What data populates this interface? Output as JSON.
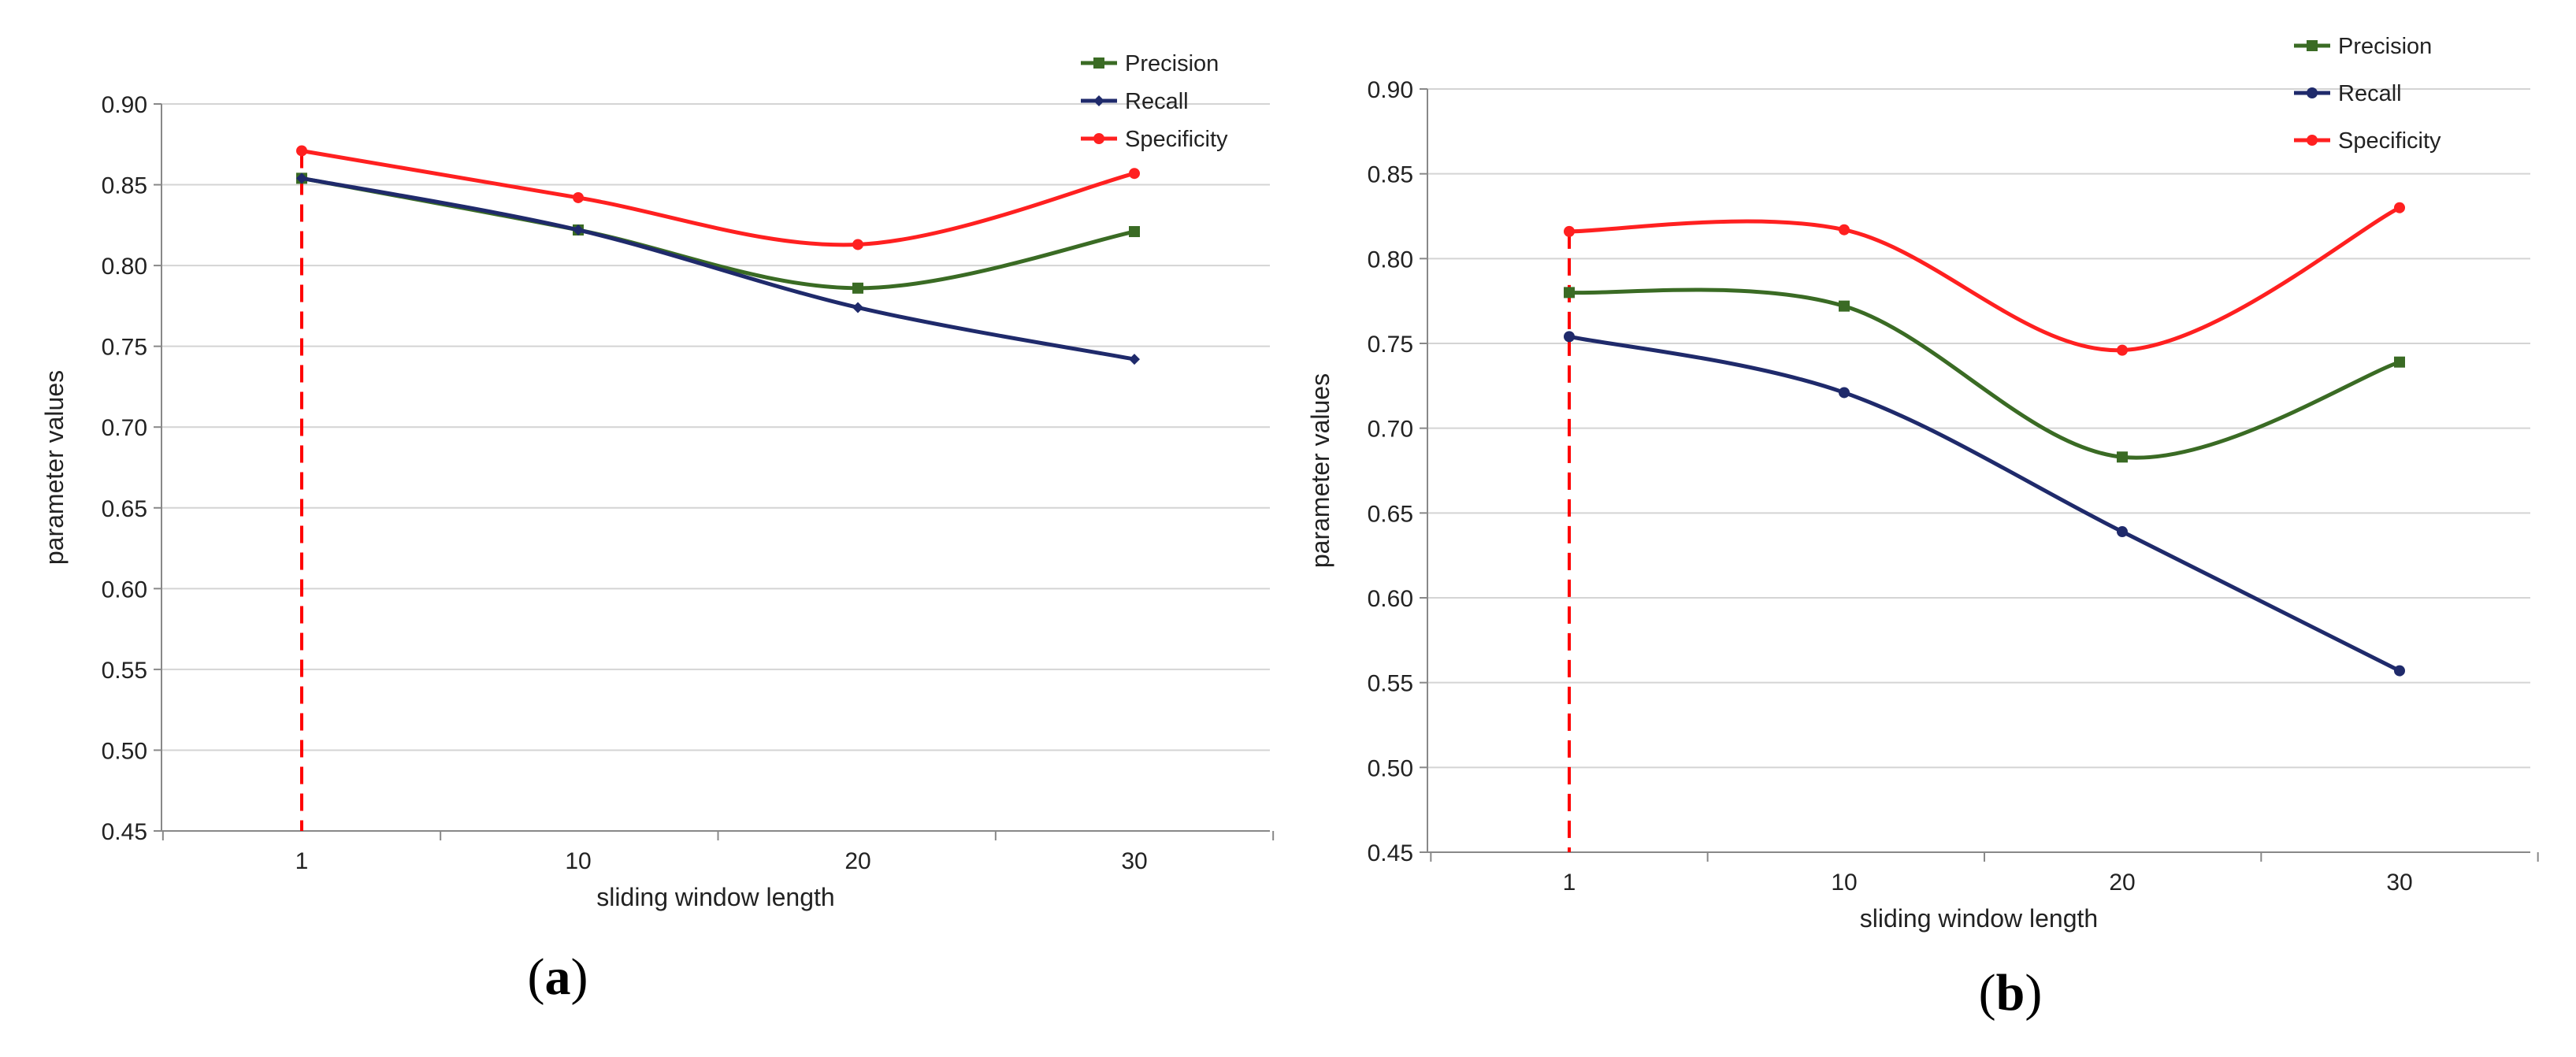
{
  "chart_data": [
    {
      "type": "line",
      "caption": "a",
      "xlabel": "sliding  window length",
      "ylabel": "parameter values",
      "categories": [
        "1",
        "10",
        "20",
        "30"
      ],
      "ylim": [
        0.45,
        0.9
      ],
      "ytick_labels": [
        "0.45",
        "0.50",
        "0.55",
        "0.60",
        "0.65",
        "0.70",
        "0.75",
        "0.80",
        "0.85",
        "0.90"
      ],
      "grid": "horizontal",
      "legend_position": "top-right",
      "reference_line": {
        "x": "1",
        "style": "dashed",
        "color": "#ff0000"
      },
      "series": [
        {
          "name": "Precision",
          "color": "#3a6b24",
          "marker": "square",
          "values": [
            0.854,
            0.822,
            0.786,
            0.821
          ]
        },
        {
          "name": "Recall",
          "color": "#1f2a6b",
          "marker": "diamond",
          "values": [
            0.854,
            0.822,
            0.774,
            0.742
          ]
        },
        {
          "name": "Specificity",
          "color": "#ff2020",
          "marker": "circle",
          "values": [
            0.871,
            0.842,
            0.813,
            0.857
          ]
        }
      ]
    },
    {
      "type": "line",
      "caption": "b",
      "xlabel": "sliding window length",
      "ylabel": "parameter values",
      "categories": [
        "1",
        "10",
        "20",
        "30"
      ],
      "ylim": [
        0.45,
        0.9
      ],
      "ytick_labels": [
        "0.45",
        "0.50",
        "0.55",
        "0.60",
        "0.65",
        "0.70",
        "0.75",
        "0.80",
        "0.85",
        "0.90"
      ],
      "grid": "horizontal",
      "legend_position": "top-right",
      "reference_line": {
        "x": "1",
        "style": "dashed",
        "color": "#ff0000"
      },
      "series": [
        {
          "name": "Precision",
          "color": "#3a6b24",
          "marker": "square",
          "values": [
            0.78,
            0.772,
            0.683,
            0.739
          ]
        },
        {
          "name": "Recall",
          "color": "#1f2a6b",
          "marker": "circle",
          "values": [
            0.754,
            0.721,
            0.639,
            0.557
          ]
        },
        {
          "name": "Specificity",
          "color": "#ff2020",
          "marker": "circle",
          "values": [
            0.816,
            0.817,
            0.746,
            0.83
          ]
        }
      ]
    }
  ]
}
